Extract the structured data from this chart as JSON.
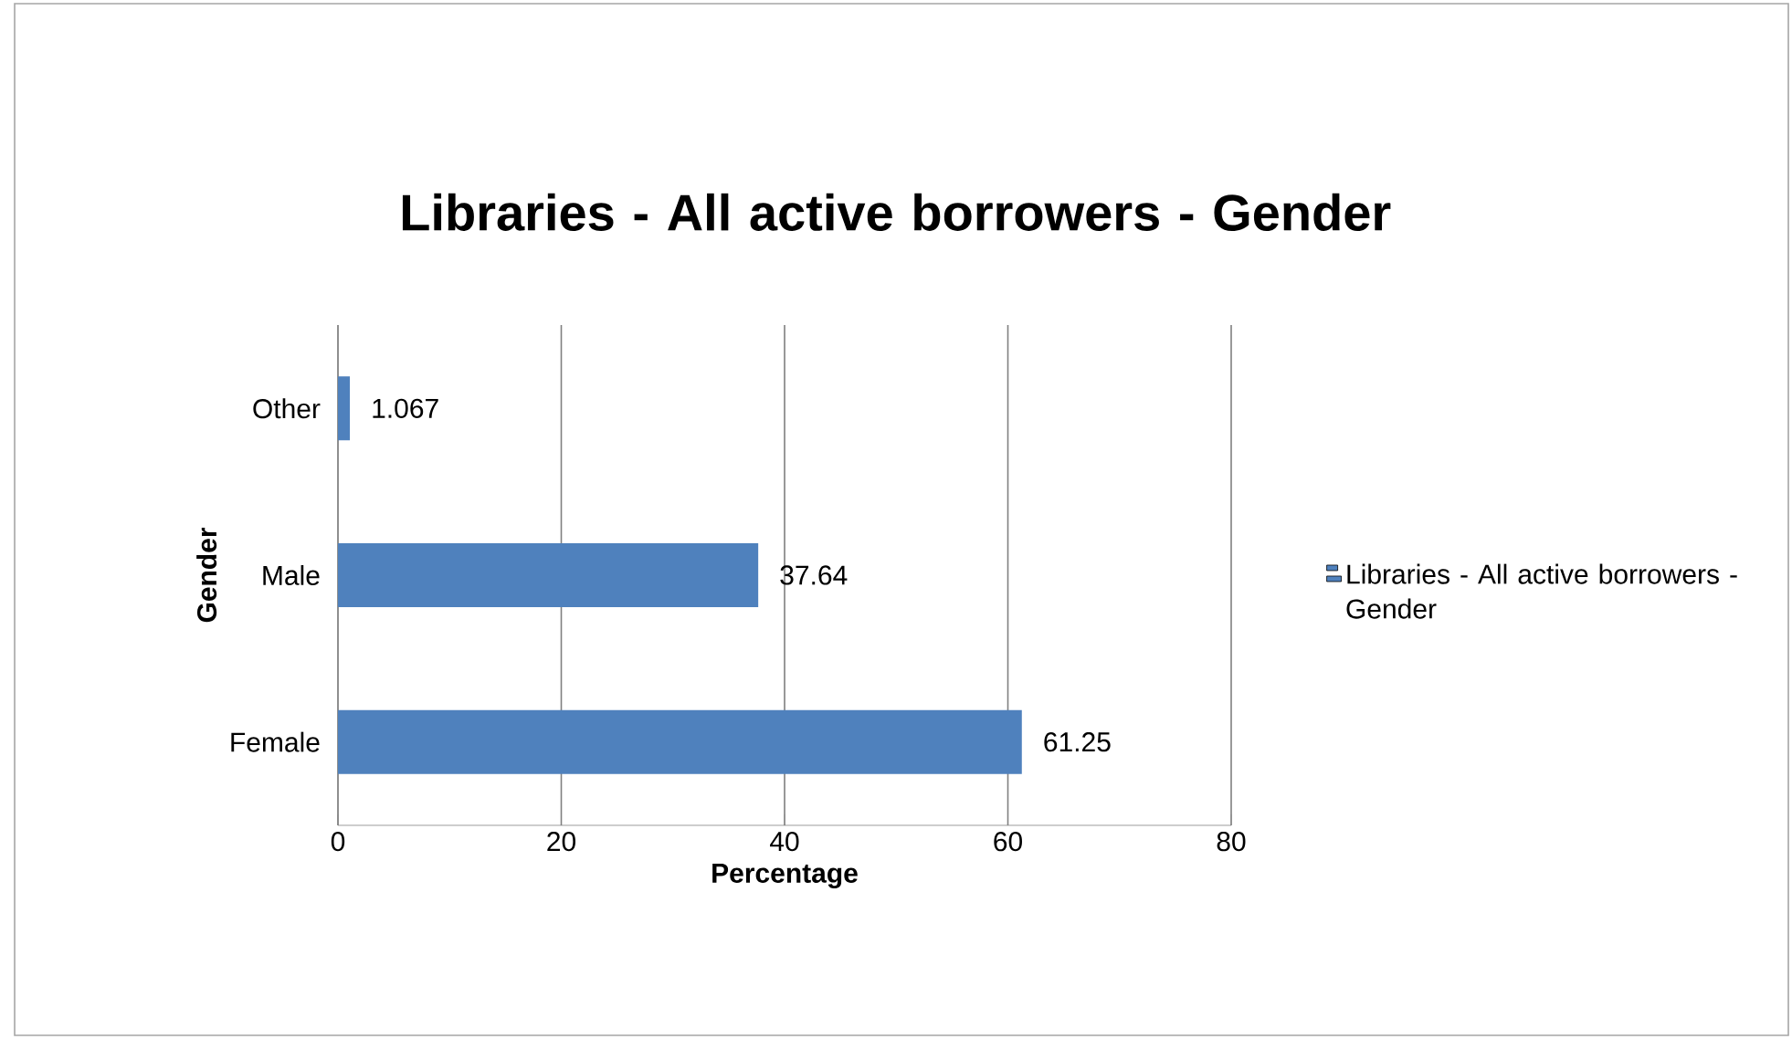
{
  "chart_data": {
    "type": "bar",
    "orientation": "horizontal",
    "title": "Libraries - All active borrowers - Gender",
    "xlabel": "Percentage",
    "ylabel": "Gender",
    "categories": [
      "Other",
      "Male",
      "Female"
    ],
    "series": [
      {
        "name": "Libraries - All active borrowers - Gender",
        "color": "#4f81bd",
        "values": [
          1.067,
          37.64,
          61.25
        ]
      }
    ],
    "xlim": [
      0,
      80
    ],
    "xticks": [
      0,
      20,
      40,
      60,
      80
    ],
    "grid": "x",
    "legend": "right",
    "data_labels": true
  }
}
